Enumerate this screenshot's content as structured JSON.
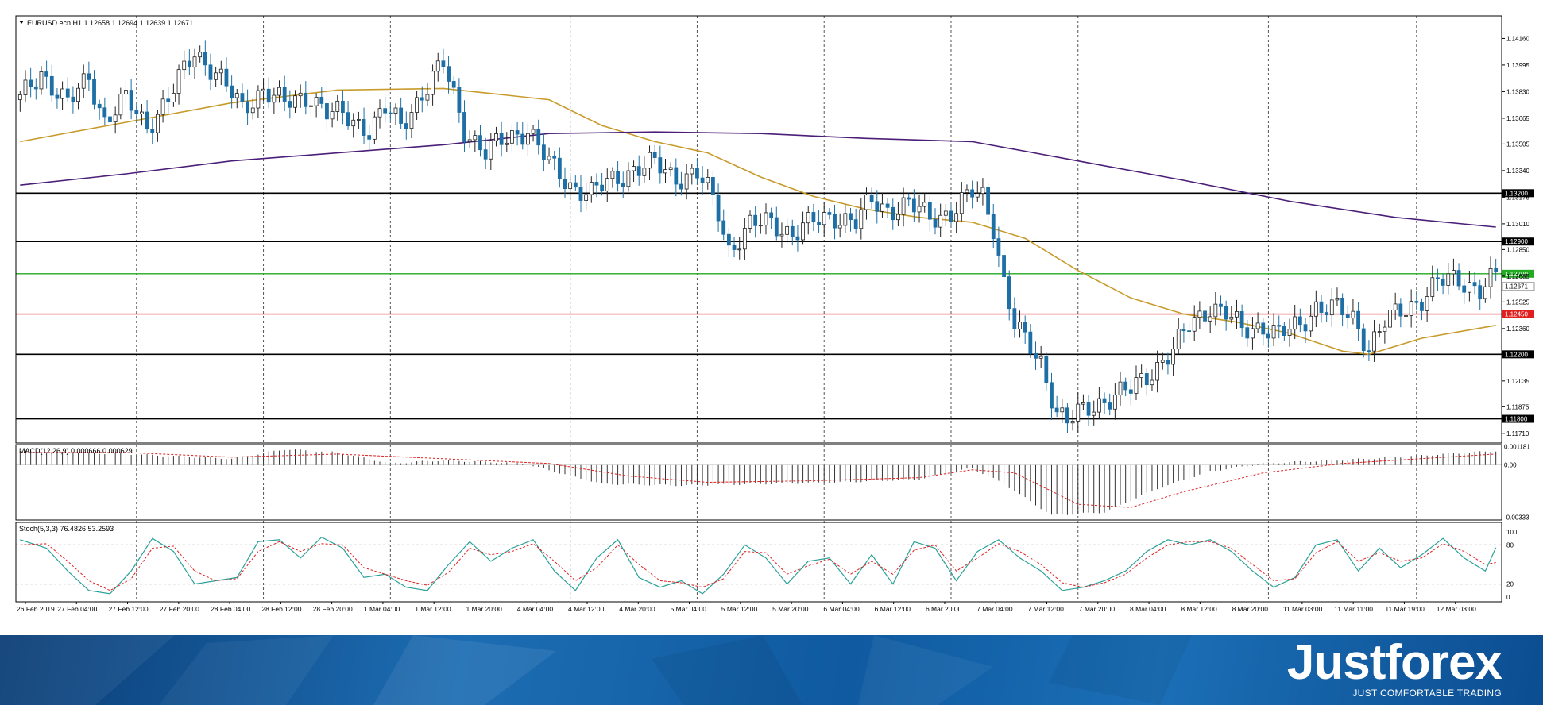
{
  "chart_data": {
    "type": "candlestick",
    "symbol_header": "EURUSD.ecn,H1  1.12658 1.12694 1.12639 1.12671",
    "ylim": [
      1.1165,
      1.143
    ],
    "price_ticks": [
      "1.14160",
      "1.13995",
      "1.13830",
      "1.13665",
      "1.13505",
      "1.13340",
      "1.13175",
      "1.13010",
      "1.12850",
      "1.12685",
      "1.12525",
      "1.12360",
      "1.12035",
      "1.11875",
      "1.11710"
    ],
    "x_labels": [
      "26 Feb 2019",
      "27 Feb 04:00",
      "27 Feb 12:00",
      "27 Feb 20:00",
      "28 Feb 04:00",
      "28 Feb 12:00",
      "28 Feb 20:00",
      "1 Mar 04:00",
      "1 Mar 12:00",
      "1 Mar 20:00",
      "4 Mar 04:00",
      "4 Mar 12:00",
      "4 Mar 20:00",
      "5 Mar 04:00",
      "5 Mar 12:00",
      "5 Mar 20:00",
      "6 Mar 04:00",
      "6 Mar 12:00",
      "6 Mar 20:00",
      "7 Mar 04:00",
      "7 Mar 12:00",
      "7 Mar 20:00",
      "8 Mar 04:00",
      "8 Mar 12:00",
      "8 Mar 20:00",
      "11 Mar 03:00",
      "11 Mar 11:00",
      "11 Mar 19:00",
      "12 Mar 03:00"
    ],
    "day_separators": [
      "27 Feb",
      "28 Feb",
      "1 Mar",
      "4 Mar",
      "5 Mar",
      "6 Mar",
      "7 Mar",
      "8 Mar",
      "11 Mar",
      "12 Mar"
    ],
    "close_path": [
      [
        0,
        1.1378
      ],
      [
        4,
        1.1395
      ],
      [
        9,
        1.1375
      ],
      [
        13,
        1.1392
      ],
      [
        16,
        1.1365
      ],
      [
        20,
        1.1378
      ],
      [
        24,
        1.1362
      ],
      [
        28,
        1.1378
      ],
      [
        33,
        1.1408
      ],
      [
        37,
        1.1395
      ],
      [
        42,
        1.1372
      ],
      [
        46,
        1.1385
      ],
      [
        50,
        1.1375
      ],
      [
        55,
        1.1381
      ],
      [
        58,
        1.137
      ],
      [
        61,
        1.1368
      ],
      [
        63,
        1.1365
      ],
      [
        66,
        1.136
      ],
      [
        69,
        1.1372
      ],
      [
        72,
        1.1362
      ],
      [
        76,
        1.1382
      ],
      [
        80,
        1.14
      ],
      [
        84,
        1.136
      ],
      [
        88,
        1.1345
      ],
      [
        92,
        1.1354
      ],
      [
        96,
        1.136
      ],
      [
        100,
        1.1338
      ],
      [
        104,
        1.1325
      ],
      [
        108,
        1.132
      ],
      [
        112,
        1.1328
      ],
      [
        116,
        1.1335
      ],
      [
        120,
        1.1338
      ],
      [
        124,
        1.133
      ],
      [
        128,
        1.1332
      ],
      [
        130,
        1.1322
      ],
      [
        132,
        1.1308
      ],
      [
        134,
        1.1285
      ],
      [
        138,
        1.13
      ],
      [
        142,
        1.1302
      ],
      [
        146,
        1.1295
      ],
      [
        150,
        1.1302
      ],
      [
        154,
        1.1306
      ],
      [
        158,
        1.1302
      ],
      [
        161,
        1.1315
      ],
      [
        164,
        1.131
      ],
      [
        168,
        1.1313
      ],
      [
        172,
        1.1305
      ],
      [
        176,
        1.1308
      ],
      [
        180,
        1.132
      ],
      [
        182,
        1.1318
      ],
      [
        184,
        1.13
      ],
      [
        186,
        1.1265
      ],
      [
        188,
        1.1238
      ],
      [
        190,
        1.1228
      ],
      [
        193,
        1.1215
      ],
      [
        196,
        1.1185
      ],
      [
        198,
        1.1178
      ],
      [
        201,
        1.1185
      ],
      [
        205,
        1.1192
      ],
      [
        210,
        1.1198
      ],
      [
        214,
        1.121
      ],
      [
        218,
        1.1222
      ],
      [
        221,
        1.1238
      ],
      [
        225,
        1.125
      ],
      [
        228,
        1.1245
      ],
      [
        231,
        1.1235
      ],
      [
        235,
        1.1238
      ],
      [
        238,
        1.1232
      ],
      [
        242,
        1.1238
      ],
      [
        245,
        1.125
      ],
      [
        249,
        1.1248
      ],
      [
        252,
        1.1242
      ],
      [
        255,
        1.1225
      ],
      [
        258,
        1.124
      ],
      [
        262,
        1.1248
      ],
      [
        265,
        1.1255
      ],
      [
        268,
        1.1265
      ],
      [
        272,
        1.1266
      ],
      [
        276,
        1.1261
      ],
      [
        279,
        1.1268
      ]
    ],
    "series": [
      {
        "name": "MA fast",
        "color": "#c79a2a",
        "values": [
          [
            0,
            1.1352
          ],
          [
            20,
            1.1364
          ],
          [
            40,
            1.1376
          ],
          [
            60,
            1.1384
          ],
          [
            80,
            1.1385
          ],
          [
            100,
            1.1378
          ],
          [
            110,
            1.1362
          ],
          [
            120,
            1.1352
          ],
          [
            130,
            1.1345
          ],
          [
            140,
            1.133
          ],
          [
            150,
            1.1318
          ],
          [
            160,
            1.131
          ],
          [
            170,
            1.1305
          ],
          [
            180,
            1.1302
          ],
          [
            190,
            1.1292
          ],
          [
            200,
            1.1272
          ],
          [
            210,
            1.1255
          ],
          [
            220,
            1.1245
          ],
          [
            230,
            1.124
          ],
          [
            240,
            1.1233
          ],
          [
            250,
            1.1222
          ],
          [
            255,
            1.122
          ],
          [
            265,
            1.123
          ],
          [
            279,
            1.1238
          ]
        ]
      },
      {
        "name": "MA slow",
        "color": "#4b1e78",
        "values": [
          [
            0,
            1.1325
          ],
          [
            20,
            1.1332
          ],
          [
            40,
            1.134
          ],
          [
            60,
            1.1345
          ],
          [
            80,
            1.135
          ],
          [
            100,
            1.1357
          ],
          [
            120,
            1.1358
          ],
          [
            140,
            1.1357
          ],
          [
            160,
            1.1354
          ],
          [
            180,
            1.1352
          ],
          [
            190,
            1.1346
          ],
          [
            200,
            1.134
          ],
          [
            220,
            1.1328
          ],
          [
            240,
            1.1315
          ],
          [
            260,
            1.1305
          ],
          [
            279,
            1.1299
          ]
        ]
      }
    ],
    "levels": [
      {
        "price": 1.132,
        "label": "1.13200",
        "color": "#000000"
      },
      {
        "price": 1.129,
        "label": "1.12900",
        "color": "#000000"
      },
      {
        "price": 1.127,
        "label": "1.12700",
        "color": "#22aa22"
      },
      {
        "price": 1.1245,
        "label": "1.12450",
        "color": "#e02020"
      },
      {
        "price": 1.122,
        "label": "1.12200",
        "color": "#000000"
      },
      {
        "price": 1.118,
        "label": "1.11800",
        "color": "#000000"
      }
    ],
    "current_price_label": "1.12671",
    "macd": {
      "header": "MACD(12,26,9) 0.000666 0.000629",
      "ticks": [
        "0.001181",
        "0.00",
        "-0.00333"
      ],
      "ylim": [
        -0.0035,
        0.0013
      ],
      "hist": [
        [
          0,
          0.0009
        ],
        [
          20,
          0.0007
        ],
        [
          40,
          0.0004
        ],
        [
          50,
          0.001
        ],
        [
          60,
          0.0008
        ],
        [
          70,
          0.0001
        ],
        [
          80,
          0.0003
        ],
        [
          95,
          0.0001
        ],
        [
          110,
          -0.0012
        ],
        [
          125,
          -0.0013
        ],
        [
          140,
          -0.0012
        ],
        [
          155,
          -0.0011
        ],
        [
          170,
          -0.0009
        ],
        [
          180,
          -0.0002
        ],
        [
          186,
          -0.0012
        ],
        [
          195,
          -0.0032
        ],
        [
          205,
          -0.003
        ],
        [
          215,
          -0.0015
        ],
        [
          225,
          -0.0004
        ],
        [
          235,
          0.0001
        ],
        [
          255,
          0.0004
        ],
        [
          279,
          0.0009
        ]
      ],
      "signal": [
        [
          0,
          0.0008
        ],
        [
          20,
          0.0008
        ],
        [
          40,
          0.0005
        ],
        [
          60,
          0.0007
        ],
        [
          80,
          0.0004
        ],
        [
          100,
          0.0001
        ],
        [
          115,
          -0.0007
        ],
        [
          130,
          -0.0011
        ],
        [
          150,
          -0.001
        ],
        [
          170,
          -0.0008
        ],
        [
          180,
          -0.0003
        ],
        [
          188,
          -0.0005
        ],
        [
          200,
          -0.0025
        ],
        [
          210,
          -0.0027
        ],
        [
          220,
          -0.0017
        ],
        [
          235,
          -0.0005
        ],
        [
          250,
          0.0001
        ],
        [
          279,
          0.0007
        ]
      ]
    },
    "stoch": {
      "header": "Stoch(5,3,3) 76.4826 53.2593",
      "ticks": [
        "100",
        "80",
        "20",
        "0"
      ],
      "main": [
        [
          0,
          88
        ],
        [
          5,
          75
        ],
        [
          9,
          40
        ],
        [
          13,
          10
        ],
        [
          17,
          5
        ],
        [
          21,
          40
        ],
        [
          25,
          90
        ],
        [
          29,
          70
        ],
        [
          33,
          20
        ],
        [
          37,
          25
        ],
        [
          41,
          30
        ],
        [
          45,
          85
        ],
        [
          49,
          88
        ],
        [
          53,
          60
        ],
        [
          57,
          92
        ],
        [
          61,
          75
        ],
        [
          65,
          30
        ],
        [
          69,
          35
        ],
        [
          73,
          15
        ],
        [
          77,
          10
        ],
        [
          81,
          50
        ],
        [
          85,
          85
        ],
        [
          89,
          55
        ],
        [
          93,
          75
        ],
        [
          97,
          88
        ],
        [
          101,
          40
        ],
        [
          105,
          10
        ],
        [
          109,
          60
        ],
        [
          113,
          88
        ],
        [
          117,
          30
        ],
        [
          121,
          15
        ],
        [
          125,
          25
        ],
        [
          129,
          5
        ],
        [
          133,
          35
        ],
        [
          137,
          80
        ],
        [
          141,
          60
        ],
        [
          145,
          20
        ],
        [
          149,
          55
        ],
        [
          153,
          60
        ],
        [
          157,
          20
        ],
        [
          161,
          65
        ],
        [
          165,
          20
        ],
        [
          169,
          85
        ],
        [
          173,
          75
        ],
        [
          177,
          25
        ],
        [
          181,
          70
        ],
        [
          185,
          88
        ],
        [
          189,
          60
        ],
        [
          193,
          40
        ],
        [
          197,
          10
        ],
        [
          201,
          15
        ],
        [
          205,
          25
        ],
        [
          209,
          40
        ],
        [
          213,
          70
        ],
        [
          217,
          88
        ],
        [
          221,
          80
        ],
        [
          225,
          88
        ],
        [
          229,
          70
        ],
        [
          233,
          40
        ],
        [
          237,
          15
        ],
        [
          241,
          30
        ],
        [
          245,
          80
        ],
        [
          249,
          88
        ],
        [
          253,
          40
        ],
        [
          257,
          75
        ],
        [
          261,
          45
        ],
        [
          265,
          65
        ],
        [
          269,
          90
        ],
        [
          273,
          60
        ],
        [
          277,
          40
        ],
        [
          279,
          76
        ]
      ],
      "signal": [
        [
          0,
          80
        ],
        [
          5,
          82
        ],
        [
          9,
          55
        ],
        [
          13,
          25
        ],
        [
          17,
          10
        ],
        [
          21,
          28
        ],
        [
          25,
          75
        ],
        [
          29,
          78
        ],
        [
          33,
          40
        ],
        [
          37,
          25
        ],
        [
          41,
          28
        ],
        [
          45,
          70
        ],
        [
          49,
          85
        ],
        [
          53,
          70
        ],
        [
          57,
          82
        ],
        [
          61,
          80
        ],
        [
          65,
          45
        ],
        [
          69,
          35
        ],
        [
          73,
          25
        ],
        [
          77,
          18
        ],
        [
          81,
          38
        ],
        [
          85,
          75
        ],
        [
          89,
          65
        ],
        [
          93,
          70
        ],
        [
          97,
          82
        ],
        [
          101,
          55
        ],
        [
          105,
          25
        ],
        [
          109,
          45
        ],
        [
          113,
          80
        ],
        [
          117,
          50
        ],
        [
          121,
          25
        ],
        [
          125,
          22
        ],
        [
          129,
          15
        ],
        [
          133,
          28
        ],
        [
          137,
          70
        ],
        [
          141,
          68
        ],
        [
          145,
          35
        ],
        [
          149,
          48
        ],
        [
          153,
          58
        ],
        [
          157,
          35
        ],
        [
          161,
          55
        ],
        [
          165,
          35
        ],
        [
          169,
          72
        ],
        [
          173,
          80
        ],
        [
          177,
          40
        ],
        [
          181,
          60
        ],
        [
          185,
          82
        ],
        [
          189,
          70
        ],
        [
          193,
          50
        ],
        [
          197,
          22
        ],
        [
          201,
          15
        ],
        [
          205,
          22
        ],
        [
          209,
          35
        ],
        [
          213,
          60
        ],
        [
          217,
          80
        ],
        [
          221,
          85
        ],
        [
          225,
          85
        ],
        [
          229,
          75
        ],
        [
          233,
          50
        ],
        [
          237,
          25
        ],
        [
          241,
          28
        ],
        [
          245,
          68
        ],
        [
          249,
          85
        ],
        [
          253,
          55
        ],
        [
          257,
          68
        ],
        [
          261,
          55
        ],
        [
          265,
          60
        ],
        [
          269,
          82
        ],
        [
          273,
          70
        ],
        [
          277,
          50
        ],
        [
          279,
          53
        ]
      ]
    }
  },
  "brand": {
    "logo": "Justforex",
    "slogan": "JUST COMFORTABLE TRADING"
  }
}
